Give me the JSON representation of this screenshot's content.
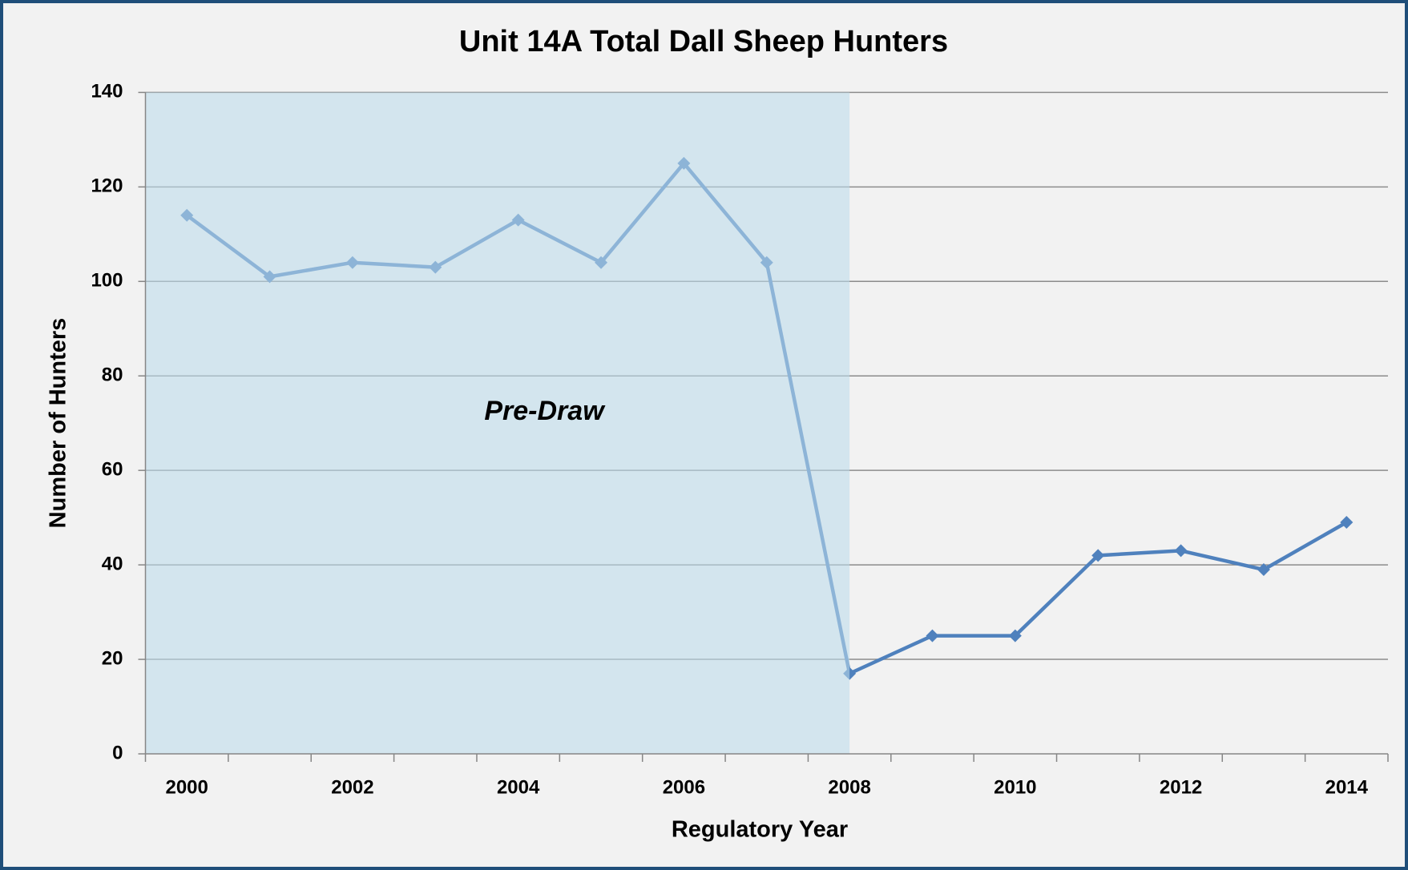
{
  "chart_data": {
    "type": "line",
    "title": "Unit 14A Total Dall Sheep Hunters",
    "x_label": "Regulatory Year",
    "y_label": "Number of Hunters",
    "categories": [
      "2000",
      null,
      "2002",
      null,
      "2004",
      null,
      "2006",
      null,
      "2008",
      null,
      "2010",
      null,
      "2012",
      null,
      "2014"
    ],
    "values": [
      114,
      101,
      104,
      103,
      113,
      104,
      125,
      104,
      17,
      25,
      25,
      42,
      43,
      39,
      49
    ],
    "color": "#4f81bd",
    "ylim": [
      0,
      140
    ],
    "yticks": [
      0,
      20,
      40,
      60,
      80,
      100,
      120,
      140
    ],
    "grid": true,
    "shade": {
      "label": "Pre-Draw",
      "to": 8
    }
  }
}
